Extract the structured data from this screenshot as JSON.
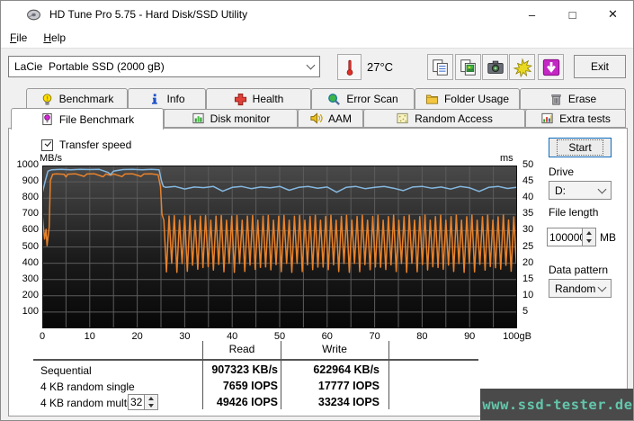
{
  "window": {
    "title": "HD Tune Pro 5.75 - Hard Disk/SSD Utility",
    "controls": {
      "minimize": "–",
      "maximize": "□",
      "close": "✕"
    }
  },
  "menu": {
    "file": {
      "accel": "F",
      "rest": "ile"
    },
    "help": {
      "accel": "H",
      "rest": "elp"
    }
  },
  "toolbar": {
    "drive_selector_value": "LaCie  Portable SSD (2000 gB)",
    "temperature": "27°C",
    "exit_label": "Exit",
    "icon_names": [
      "thermometer-icon",
      "copy-text-icon",
      "copy-image-icon",
      "screenshot-icon",
      "save-gold-icon",
      "download-icon"
    ]
  },
  "tabs": {
    "active": "File Benchmark",
    "row1": [
      {
        "label": "Benchmark",
        "icon": "benchmark-icon"
      },
      {
        "label": "Info",
        "icon": "info-icon"
      },
      {
        "label": "Health",
        "icon": "health-icon"
      },
      {
        "label": "Error Scan",
        "icon": "error-scan-icon"
      },
      {
        "label": "Folder Usage",
        "icon": "folder-usage-icon"
      },
      {
        "label": "Erase",
        "icon": "erase-icon"
      }
    ],
    "row2": [
      {
        "label": "File Benchmark",
        "icon": "file-benchmark-icon"
      },
      {
        "label": "Disk monitor",
        "icon": "disk-monitor-icon"
      },
      {
        "label": "AAM",
        "icon": "aam-icon"
      },
      {
        "label": "Random Access",
        "icon": "random-access-icon"
      },
      {
        "label": "Extra tests",
        "icon": "extra-tests-icon"
      }
    ]
  },
  "panel": {
    "transfer_speed_label": "Transfer speed",
    "transfer_speed_checked": true
  },
  "controls": {
    "start_label": "Start",
    "drive_label": "Drive",
    "drive_value": "D:",
    "file_length_label": "File length",
    "file_length_value": "100000",
    "file_length_unit": "MB",
    "data_pattern_label": "Data pattern",
    "data_pattern_value": "Random"
  },
  "results": {
    "headers": {
      "read": "Read",
      "write": "Write"
    },
    "rows": [
      {
        "label": "Sequential",
        "read": "907323 KB/s",
        "write": "622964 KB/s"
      },
      {
        "label": "4 KB random single",
        "read": "7659 IOPS",
        "write": "17777 IOPS"
      },
      {
        "label": "4 KB random multi",
        "spinner": "32",
        "read": "49426 IOPS",
        "write": "33234 IOPS"
      }
    ]
  },
  "watermark": "www.ssd-tester.de",
  "chart_data": {
    "type": "line",
    "title": "Transfer speed",
    "x_axis": {
      "ticks": [
        "0",
        "10",
        "20",
        "30",
        "40",
        "50",
        "60",
        "70",
        "80",
        "90",
        "100gB"
      ],
      "range": [
        0,
        100
      ],
      "gridline_step": 5
    },
    "left_axis": {
      "label": "MB/s",
      "ticks": [
        1000,
        900,
        800,
        700,
        600,
        500,
        400,
        300,
        200,
        100
      ],
      "range": [
        0,
        1000
      ]
    },
    "right_axis": {
      "label": "ms",
      "ticks": [
        50,
        45,
        40,
        35,
        30,
        25,
        20,
        15,
        10,
        5
      ],
      "range": [
        0,
        50
      ]
    },
    "grid_on": true,
    "grid_color": "#5c5c5c",
    "plot_bg": {
      "top": "#4a4a4a",
      "mid": "#1c1c1c",
      "bottom": "#070707"
    },
    "series": [
      {
        "name": "write_speed_mbs",
        "color": "#e8822c",
        "points": [
          [
            0,
            700
          ],
          [
            0.25,
            622
          ],
          [
            0.5,
            548
          ],
          [
            0.8,
            608
          ],
          [
            1.0,
            508
          ],
          [
            1.2,
            556
          ],
          [
            1.45,
            620
          ],
          [
            1.7,
            908
          ],
          [
            2.2,
            946
          ],
          [
            3,
            949
          ],
          [
            4.6,
            946
          ],
          [
            5,
            930
          ],
          [
            5.4,
            947
          ],
          [
            7,
            949
          ],
          [
            8.8,
            933
          ],
          [
            9.4,
            948
          ],
          [
            11,
            949
          ],
          [
            12.8,
            931
          ],
          [
            13.4,
            948
          ],
          [
            14.4,
            940
          ],
          [
            15,
            948
          ],
          [
            16.8,
            932
          ],
          [
            17.4,
            948
          ],
          [
            19,
            949
          ],
          [
            20.8,
            933
          ],
          [
            21.4,
            948
          ],
          [
            23,
            949
          ],
          [
            24.4,
            943
          ],
          [
            24.9,
            868
          ],
          [
            25.2,
            700
          ]
        ],
        "oscillation": {
          "from": 25.6,
          "to": 100,
          "step": 0.55,
          "high": 682,
          "low": 372,
          "jitter_high": 18,
          "jitter_low": 28
        }
      },
      {
        "name": "read_speed_mbs",
        "color": "#85b8e0",
        "points": [
          [
            0,
            830
          ],
          [
            0.6,
            902
          ],
          [
            1.2,
            966
          ],
          [
            2,
            974
          ],
          [
            4,
            976
          ],
          [
            6,
            974
          ],
          [
            8,
            977
          ],
          [
            10,
            975
          ],
          [
            12,
            976
          ],
          [
            13.8,
            958
          ],
          [
            14.4,
            944
          ],
          [
            15,
            966
          ],
          [
            17,
            975
          ],
          [
            19,
            976
          ],
          [
            21,
            974
          ],
          [
            23,
            976
          ],
          [
            24.6,
            974
          ],
          [
            25.1,
            906
          ],
          [
            25.5,
            872
          ],
          [
            26,
            866
          ],
          [
            28,
            871
          ],
          [
            30,
            856
          ],
          [
            32,
            868
          ],
          [
            34,
            864
          ],
          [
            36,
            872
          ],
          [
            38,
            842
          ],
          [
            40,
            866
          ],
          [
            42,
            871
          ],
          [
            44,
            858
          ],
          [
            46,
            868
          ],
          [
            48,
            863
          ],
          [
            50,
            872
          ],
          [
            52,
            848
          ],
          [
            54,
            866
          ],
          [
            56,
            871
          ],
          [
            58,
            861
          ],
          [
            60,
            868
          ],
          [
            62,
            836
          ],
          [
            64,
            866
          ],
          [
            66,
            872
          ],
          [
            68,
            858
          ],
          [
            70,
            866
          ],
          [
            72,
            871
          ],
          [
            74,
            861
          ],
          [
            76,
            846
          ],
          [
            78,
            868
          ],
          [
            80,
            872
          ],
          [
            82,
            861
          ],
          [
            84,
            868
          ],
          [
            86,
            855
          ],
          [
            88,
            871
          ],
          [
            90,
            863
          ],
          [
            92,
            841
          ],
          [
            94,
            866
          ],
          [
            96,
            872
          ],
          [
            98,
            859
          ],
          [
            100,
            867
          ]
        ]
      }
    ]
  }
}
